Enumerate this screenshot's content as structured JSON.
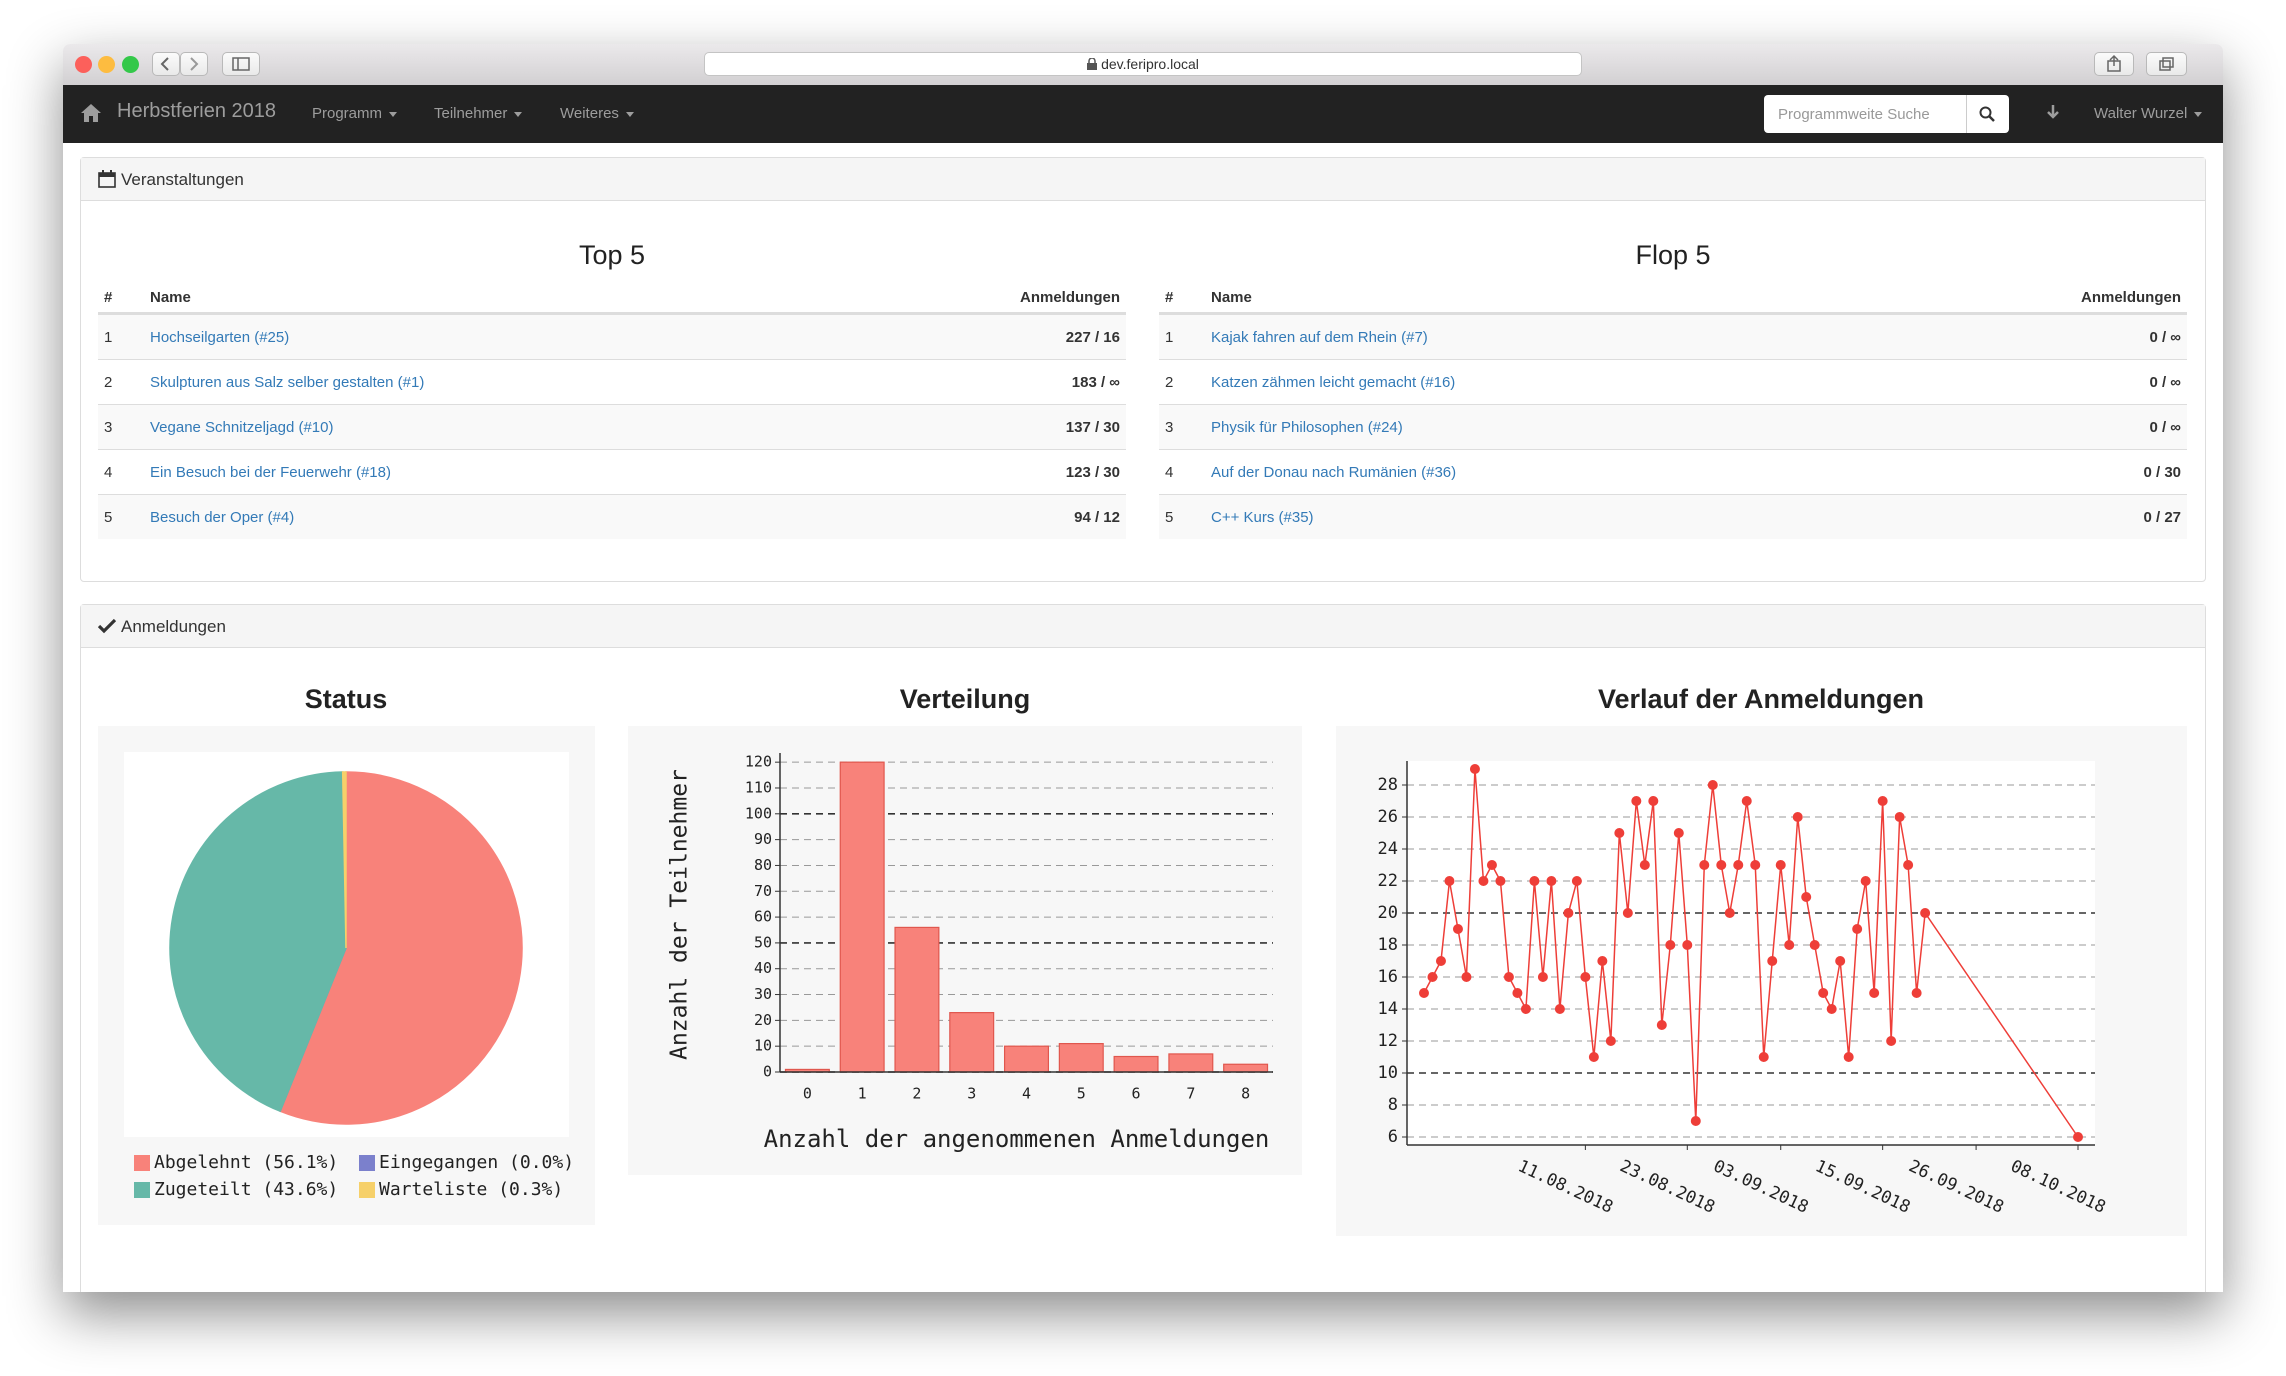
{
  "browser": {
    "url": "dev.feripro.local"
  },
  "nav": {
    "brand": "Herbstferien 2018",
    "menus": [
      "Programm",
      "Teilnehmer",
      "Weiteres"
    ],
    "search_placeholder": "Programmweite Suche",
    "user": "Walter Wurzel"
  },
  "veranstaltungen": {
    "title": "Veranstaltungen",
    "top": {
      "title": "Top 5",
      "headers": [
        "#",
        "Name",
        "Anmeldungen"
      ],
      "rows": [
        [
          1,
          "Hochseilgarten (#25)",
          "227 / 16"
        ],
        [
          2,
          "Skulpturen aus Salz selber gestalten (#1)",
          "183 / ∞"
        ],
        [
          3,
          "Vegane Schnitzeljagd (#10)",
          "137 / 30"
        ],
        [
          4,
          "Ein Besuch bei der Feuerwehr (#18)",
          "123 / 30"
        ],
        [
          5,
          "Besuch der Oper (#4)",
          "94 / 12"
        ]
      ]
    },
    "flop": {
      "title": "Flop 5",
      "headers": [
        "#",
        "Name",
        "Anmeldungen"
      ],
      "rows": [
        [
          1,
          "Kajak fahren auf dem Rhein (#7)",
          "0 / ∞"
        ],
        [
          2,
          "Katzen zähmen leicht gemacht (#16)",
          "0 / ∞"
        ],
        [
          3,
          "Physik für Philosophen (#24)",
          "0 / ∞"
        ],
        [
          4,
          "Auf der Donau nach Rumänien (#36)",
          "0 / 30"
        ],
        [
          5,
          "C++ Kurs (#35)",
          "0 / 27"
        ]
      ]
    }
  },
  "anmeldungen": {
    "title": "Anmeldungen"
  },
  "chart_data": [
    {
      "type": "pie",
      "title": "Status",
      "categories": [
        "Abgelehnt (56.1%)",
        "Eingegangen (0.0%)",
        "Zugeteilt (43.6%)",
        "Warteliste (0.3%)"
      ],
      "values": [
        56.1,
        0.0,
        43.6,
        0.3
      ],
      "colors": [
        "#f8827a",
        "#7b80cc",
        "#66b8a8",
        "#f6d06a"
      ]
    },
    {
      "type": "bar",
      "title": "Verteilung",
      "x_label": "Anzahl der angenommenen Anmeldungen",
      "y_label": "Anzahl der Teilnehmer",
      "categories": [
        0,
        1,
        2,
        3,
        4,
        5,
        6,
        7,
        8
      ],
      "values": [
        1,
        120,
        56,
        23,
        10,
        11,
        6,
        7,
        3
      ],
      "color": "#f8827a",
      "ylim": [
        0,
        122
      ],
      "yticks": [
        0,
        10,
        20,
        30,
        40,
        50,
        60,
        70,
        80,
        90,
        100,
        110,
        120
      ],
      "grid": true
    },
    {
      "type": "line",
      "title": "Verlauf der Anmeldungen",
      "x": [
        "23.07.2018",
        "24.07.2018",
        "25.07.2018",
        "26.07.2018",
        "27.07.2018",
        "28.07.2018",
        "29.07.2018",
        "30.07.2018",
        "31.07.2018",
        "01.08.2018",
        "02.08.2018",
        "03.08.2018",
        "04.08.2018",
        "05.08.2018",
        "06.08.2018",
        "07.08.2018",
        "08.08.2018",
        "09.08.2018",
        "10.08.2018",
        "11.08.2018",
        "12.08.2018",
        "13.08.2018",
        "14.08.2018",
        "15.08.2018",
        "16.08.2018",
        "17.08.2018",
        "18.08.2018",
        "19.08.2018",
        "20.08.2018",
        "21.08.2018",
        "22.08.2018",
        "23.08.2018",
        "24.08.2018",
        "25.08.2018",
        "26.08.2018",
        "27.08.2018",
        "28.08.2018",
        "29.08.2018",
        "30.08.2018",
        "31.08.2018",
        "01.09.2018",
        "02.09.2018",
        "03.09.2018",
        "04.09.2018",
        "05.09.2018",
        "06.09.2018",
        "07.09.2018",
        "08.09.2018",
        "09.09.2018",
        "10.09.2018",
        "11.09.2018",
        "12.09.2018",
        "13.09.2018",
        "14.09.2018",
        "15.09.2018",
        "16.09.2018",
        "17.09.2018",
        "18.09.2018",
        "19.09.2018",
        "20.09.2018",
        "08.10.2018"
      ],
      "series": [
        {
          "color": "#ee3e38",
          "values": [
            15,
            16,
            17,
            22,
            19,
            16,
            29,
            22,
            23,
            22,
            16,
            15,
            14,
            22,
            16,
            22,
            14,
            20,
            22,
            16,
            11,
            17,
            12,
            25,
            20,
            27,
            23,
            27,
            13,
            18,
            25,
            18,
            7,
            23,
            28,
            23,
            20,
            23,
            27,
            23,
            11,
            17,
            23,
            18,
            26,
            21,
            18,
            15,
            14,
            17,
            11,
            19,
            22,
            15,
            27,
            12,
            26,
            23,
            15,
            20,
            6
          ]
        }
      ],
      "xlim": [
        "21.07.2018",
        "10.10.2018"
      ],
      "ylim": [
        5.5,
        29.5
      ],
      "xticks": [
        "11.08.2018",
        "23.08.2018",
        "03.09.2018",
        "15.09.2018",
        "26.09.2018",
        "08.10.2018"
      ],
      "yticks": [
        6,
        8,
        10,
        12,
        14,
        16,
        18,
        20,
        22,
        24,
        26,
        28
      ],
      "grid": true
    }
  ]
}
